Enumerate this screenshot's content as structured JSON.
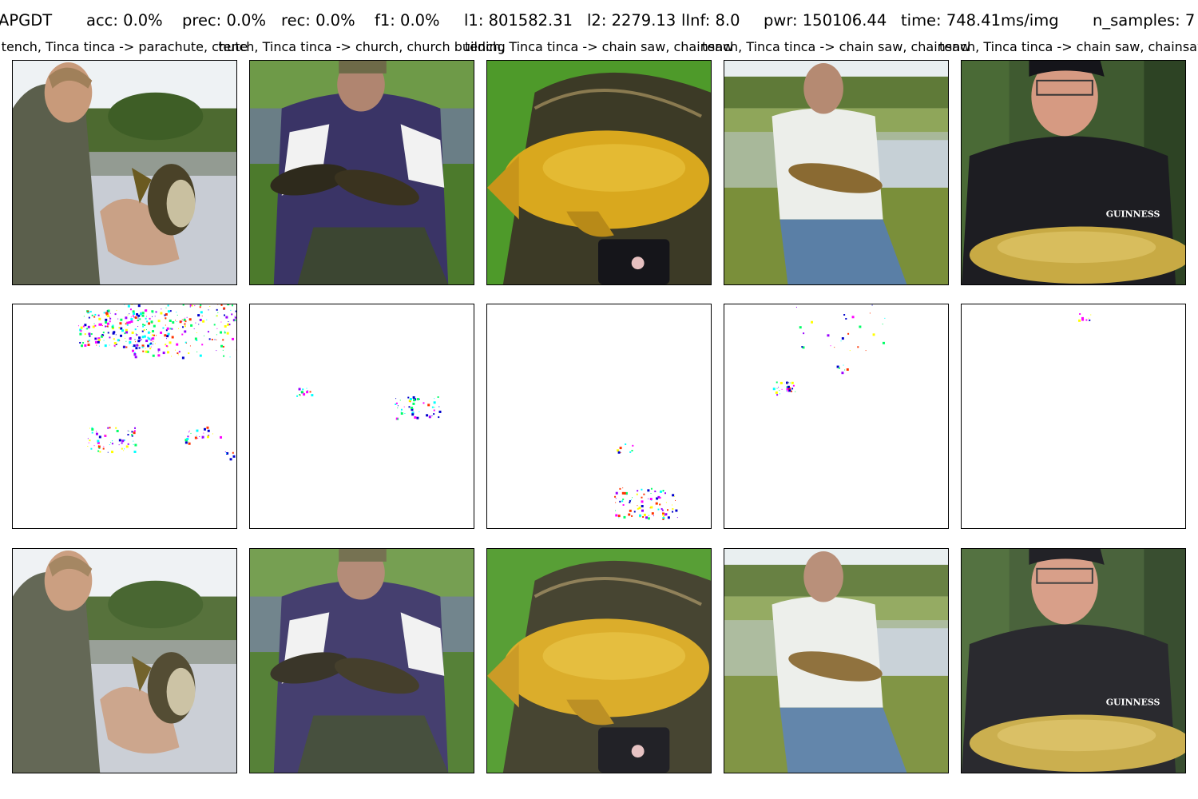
{
  "header": {
    "method": "APGDT",
    "acc": "acc: 0.0%",
    "prec": "prec: 0.0%",
    "rec": "rec: 0.0%",
    "f1": "f1: 0.0%",
    "l1": "l1: 801582.31",
    "l2": "l2: 2279.13",
    "linf": "lInf: 8.0",
    "pwr": "pwr: 150106.44",
    "time": "time: 748.41ms/img",
    "n_samples": "n_samples: 7"
  },
  "columns": [
    {
      "caption": "tench, Tinca tinca -> parachute, chute",
      "scene": "man holding tench by lake"
    },
    {
      "caption": "tench, Tinca tinca -> church, church building",
      "scene": "man in cap kneeling with two tench"
    },
    {
      "caption": "tench, Tinca tinca -> chain saw, chainsaw",
      "scene": "golden tench on landing net"
    },
    {
      "caption": "tench, Tinca tinca -> chain saw, chainsaw",
      "scene": "man sitting by lake holding tench"
    },
    {
      "caption": "tench, Tinca tinca -> chain saw, chainsaw",
      "scene": "smiling man in Guinness shirt with tench"
    }
  ],
  "rows": [
    "original",
    "perturbation",
    "adversarial"
  ],
  "shirt_logo": "GUINNESS",
  "colors": {
    "grass": "#4c7a2c",
    "water": "#c8ccd4",
    "sky": "#eef2f4",
    "fish_gold": "#d9a81e",
    "fish_dark": "#4a4228",
    "jacket_purple": "#3a3466",
    "shirt_black": "#1d1d22",
    "perturb_magenta": "#ff00ff",
    "perturb_cyan": "#00ffff",
    "perturb_yellow": "#ffff00",
    "perturb_blue": "#0000cc"
  }
}
